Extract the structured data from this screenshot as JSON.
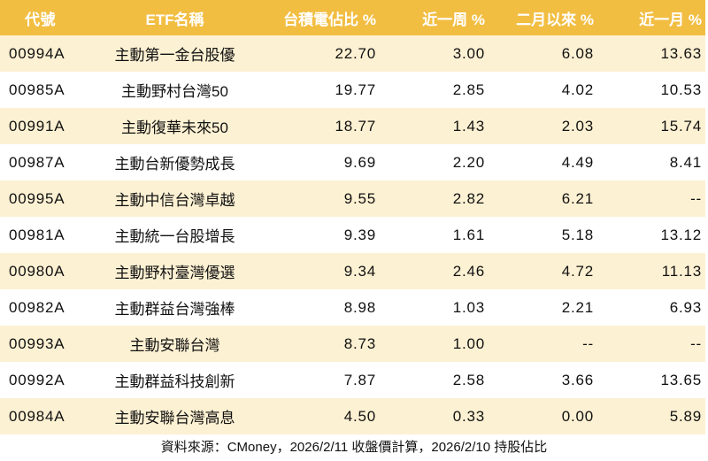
{
  "table": {
    "headers": {
      "code": "代號",
      "name": "ETF名稱",
      "tsmc_weight": "台積電佔比 %",
      "week": "近一周 %",
      "since_feb": "二月以來 %",
      "month": "近一月 %"
    },
    "rows": [
      {
        "code": "00994A",
        "name": "主動第一金台股優",
        "tsmc_weight": "22.70",
        "week": "3.00",
        "since_feb": "6.08",
        "month": "13.63"
      },
      {
        "code": "00985A",
        "name": "主動野村台灣50",
        "tsmc_weight": "19.77",
        "week": "2.85",
        "since_feb": "4.02",
        "month": "10.53"
      },
      {
        "code": "00991A",
        "name": "主動復華未來50",
        "tsmc_weight": "18.77",
        "week": "1.43",
        "since_feb": "2.03",
        "month": "15.74"
      },
      {
        "code": "00987A",
        "name": "主動台新優勢成長",
        "tsmc_weight": "9.69",
        "week": "2.20",
        "since_feb": "4.49",
        "month": "8.41"
      },
      {
        "code": "00995A",
        "name": "主動中信台灣卓越",
        "tsmc_weight": "9.55",
        "week": "2.82",
        "since_feb": "6.21",
        "month": "--"
      },
      {
        "code": "00981A",
        "name": "主動統一台股增長",
        "tsmc_weight": "9.39",
        "week": "1.61",
        "since_feb": "5.18",
        "month": "13.12"
      },
      {
        "code": "00980A",
        "name": "主動野村臺灣優選",
        "tsmc_weight": "9.34",
        "week": "2.46",
        "since_feb": "4.72",
        "month": "11.13"
      },
      {
        "code": "00982A",
        "name": "主動群益台灣強棒",
        "tsmc_weight": "8.98",
        "week": "1.03",
        "since_feb": "2.21",
        "month": "6.93"
      },
      {
        "code": "00993A",
        "name": "主動安聯台灣",
        "tsmc_weight": "8.73",
        "week": "1.00",
        "since_feb": "--",
        "month": "--"
      },
      {
        "code": "00992A",
        "name": "主動群益科技創新",
        "tsmc_weight": "7.87",
        "week": "2.58",
        "since_feb": "3.66",
        "month": "13.65"
      },
      {
        "code": "00984A",
        "name": "主動安聯台灣高息",
        "tsmc_weight": "4.50",
        "week": "0.33",
        "since_feb": "0.00",
        "month": "5.89"
      }
    ]
  },
  "footer": {
    "source": "資料來源：CMoney，2026/2/11 收盤價計算，2026/2/10 持股佔比"
  },
  "colors": {
    "header_bg": "#F2BE42",
    "header_text": "#FFFFFF",
    "row_alt_bg": "#FDF1D3",
    "row_plain_bg": "#FFFFFF",
    "text": "#111111"
  }
}
